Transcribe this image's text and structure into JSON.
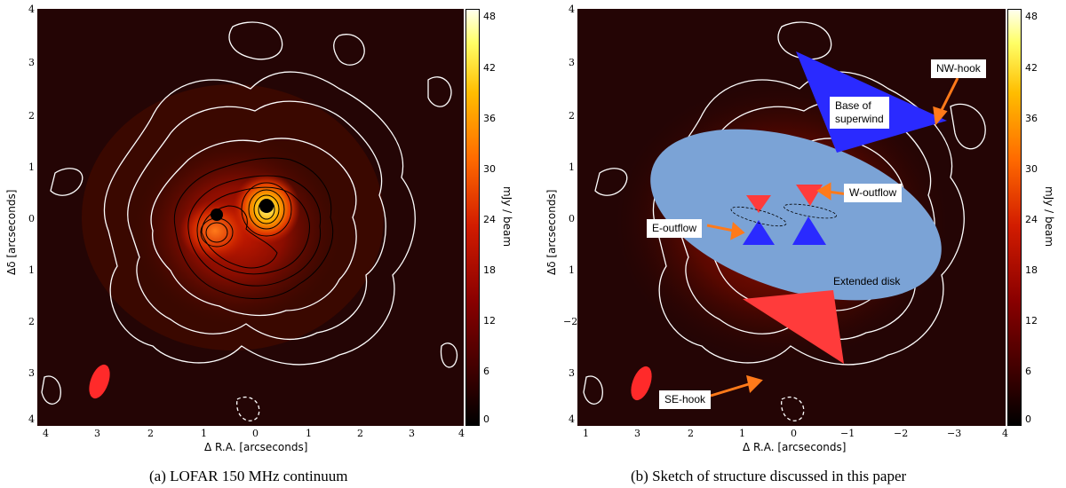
{
  "figure": {
    "panel_a": {
      "caption": "(a) LOFAR 150 MHz continuum",
      "xlabel": "Δ R.A. [arcseconds]",
      "ylabel": "Δδ [arcseconds]",
      "colorbar_label": "mJy / beam",
      "xticks": [
        "4",
        "3",
        "2",
        "1",
        "0",
        "1",
        "2",
        "3",
        "4"
      ],
      "yticks": [
        "4",
        "3",
        "2",
        "1",
        "0",
        "1",
        "2",
        "3",
        "4"
      ],
      "cbar_ticks": [
        "48",
        "42",
        "36",
        "30",
        "24",
        "18",
        "12",
        "6",
        "0"
      ]
    },
    "panel_b": {
      "caption": "(b) Sketch of structure discussed in this paper",
      "xlabel": "Δ R.A. [arcseconds]",
      "ylabel": "Δδ [arcseconds]",
      "colorbar_label": "mJy / beam",
      "xticks": [
        "1",
        "3",
        "2",
        "1",
        "0",
        "−1",
        "−2",
        "−3",
        "4"
      ],
      "yticks": [
        "4",
        "3",
        "2",
        "1",
        "0",
        "1",
        "−2",
        "3",
        "4"
      ],
      "cbar_ticks": [
        "48",
        "42",
        "36",
        "30",
        "24",
        "18",
        "12",
        "6",
        "0"
      ],
      "annotations": {
        "nw_hook": "NW-hook",
        "superwind_line1": "Base of",
        "superwind_line2": "superwind",
        "w_outflow": "W-outflow",
        "e_outflow": "E-outflow",
        "extended_disk": "Extended disk",
        "se_hook": "SE-hook"
      },
      "colors": {
        "disk": "#7ba3d6",
        "blue_cone": "#2a2aff",
        "red_cone": "#ff3b3b",
        "arrow": "#ff7a1a"
      }
    }
  }
}
